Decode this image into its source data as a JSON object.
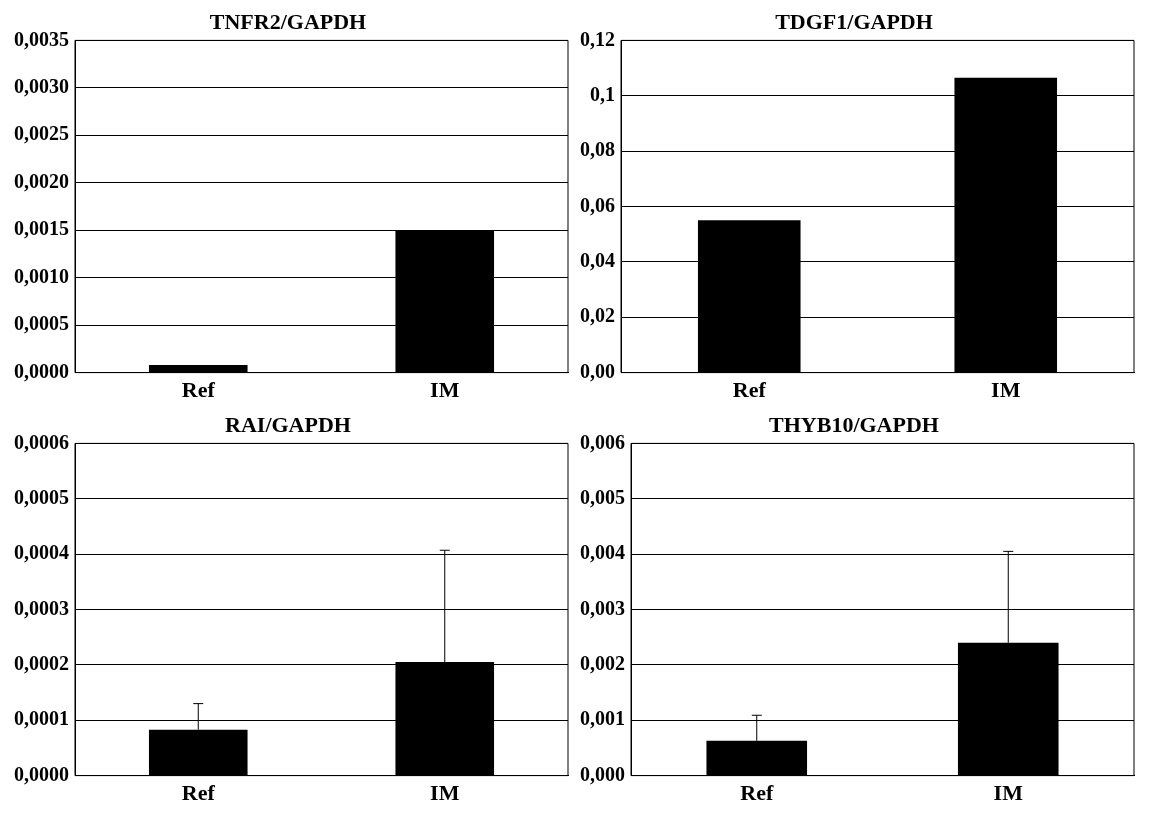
{
  "chart_data": [
    {
      "type": "bar",
      "title": "TNFR2/GAPDH",
      "categories": [
        "Ref",
        "IM"
      ],
      "values": [
        8e-05,
        0.0015
      ],
      "color": "#000000",
      "ylim": [
        0,
        0.0035
      ],
      "yticks": [
        {
          "value": 0,
          "label": "0,0000"
        },
        {
          "value": 0.0005,
          "label": "0,0005"
        },
        {
          "value": 0.001,
          "label": "0,0010"
        },
        {
          "value": 0.0015,
          "label": "0,0015"
        },
        {
          "value": 0.002,
          "label": "0,0020"
        },
        {
          "value": 0.0025,
          "label": "0,0025"
        },
        {
          "value": 0.003,
          "label": "0,0030"
        },
        {
          "value": 0.0035,
          "label": "0,0035"
        }
      ],
      "grid": "y"
    },
    {
      "type": "bar",
      "title": "TDGF1/GAPDH",
      "categories": [
        "Ref",
        "IM"
      ],
      "values": [
        0.055,
        0.1065
      ],
      "color": "#000000",
      "ylim": [
        0,
        0.12
      ],
      "yticks": [
        {
          "value": 0,
          "label": "0,00"
        },
        {
          "value": 0.02,
          "label": "0,02"
        },
        {
          "value": 0.04,
          "label": "0,04"
        },
        {
          "value": 0.06,
          "label": "0,06"
        },
        {
          "value": 0.08,
          "label": "0,08"
        },
        {
          "value": 0.1,
          "label": "0,1"
        },
        {
          "value": 0.12,
          "label": "0,12"
        }
      ],
      "grid": "y"
    },
    {
      "type": "bar",
      "title": "RAI/GAPDH",
      "categories": [
        "Ref",
        "IM"
      ],
      "values": [
        8.3e-05,
        0.000205
      ],
      "errors": [
        [
          8.3e-05,
          0.00013
        ],
        [
          0.000205,
          0.000407
        ]
      ],
      "color": "#000000",
      "ylim": [
        0,
        0.0006
      ],
      "yticks": [
        {
          "value": 0,
          "label": "0,0000"
        },
        {
          "value": 0.0001,
          "label": "0,0001"
        },
        {
          "value": 0.0002,
          "label": "0,0002"
        },
        {
          "value": 0.0003,
          "label": "0,0003"
        },
        {
          "value": 0.0004,
          "label": "0,0004"
        },
        {
          "value": 0.0005,
          "label": "0,0005"
        },
        {
          "value": 0.0006,
          "label": "0,0006"
        }
      ],
      "grid": "y"
    },
    {
      "type": "bar",
      "title": "THYB10/GAPDH",
      "categories": [
        "Ref",
        "IM"
      ],
      "values": [
        0.00063,
        0.0024
      ],
      "errors": [
        [
          0.00063,
          0.00109
        ],
        [
          0.0024,
          0.00405
        ]
      ],
      "color": "#000000",
      "ylim": [
        0,
        0.006
      ],
      "yticks": [
        {
          "value": 0,
          "label": "0,000"
        },
        {
          "value": 0.001,
          "label": "0,001"
        },
        {
          "value": 0.002,
          "label": "0,002"
        },
        {
          "value": 0.003,
          "label": "0,003"
        },
        {
          "value": 0.004,
          "label": "0,004"
        },
        {
          "value": 0.005,
          "label": "0,005"
        },
        {
          "value": 0.006,
          "label": "0,006"
        }
      ],
      "grid": "y"
    }
  ]
}
